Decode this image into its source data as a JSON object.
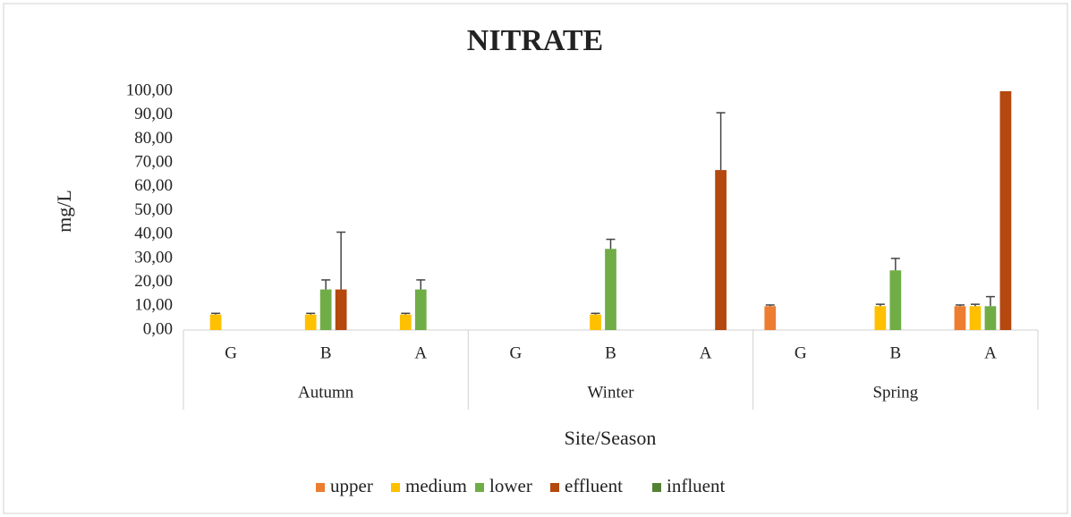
{
  "chart_data": {
    "type": "bar",
    "title": "NITRATE",
    "y_label": "mg/L",
    "x_label": "Site/Season",
    "categories": [
      "G",
      "B",
      "A",
      "G",
      "B",
      "A",
      "G",
      "B",
      "A"
    ],
    "groups": [
      "Autumn",
      "Winter",
      "Spring"
    ],
    "series": [
      {
        "name": "upper",
        "color": "#ed7d31",
        "values": [
          null,
          null,
          null,
          null,
          null,
          null,
          10,
          null,
          10
        ],
        "errors": [
          null,
          null,
          null,
          null,
          null,
          null,
          0.5,
          null,
          0.5
        ]
      },
      {
        "name": "medium",
        "color": "#ffc000",
        "values": [
          6.5,
          6.5,
          6.5,
          null,
          6.5,
          null,
          null,
          10,
          10
        ],
        "errors": [
          0.5,
          0.5,
          0.5,
          null,
          0.5,
          null,
          null,
          0.8,
          0.8
        ]
      },
      {
        "name": "lower",
        "color": "#70ad47",
        "values": [
          null,
          17,
          17,
          null,
          34,
          null,
          null,
          25,
          10
        ],
        "errors": [
          null,
          4,
          4,
          null,
          4,
          null,
          null,
          5,
          4
        ]
      },
      {
        "name": "effluent",
        "color": "#b4480e",
        "values": [
          null,
          17,
          null,
          null,
          null,
          67,
          null,
          null,
          100
        ],
        "errors": [
          null,
          24,
          null,
          null,
          null,
          24,
          null,
          null,
          null
        ]
      },
      {
        "name": "influent",
        "color": "#548235",
        "values": [
          null,
          null,
          null,
          null,
          null,
          null,
          null,
          null,
          null
        ],
        "errors": [
          null,
          null,
          null,
          null,
          null,
          null,
          null,
          null,
          null
        ]
      }
    ],
    "ylim": [
      0,
      100
    ],
    "yticks": [
      {
        "value": 0,
        "label": "0,00"
      },
      {
        "value": 10,
        "label": "10,00"
      },
      {
        "value": 20,
        "label": "20,00"
      },
      {
        "value": 30,
        "label": "30,00"
      },
      {
        "value": 40,
        "label": "40,00"
      },
      {
        "value": 50,
        "label": "50,00"
      },
      {
        "value": 60,
        "label": "60,00"
      },
      {
        "value": 70,
        "label": "70,00"
      },
      {
        "value": 80,
        "label": "80,00"
      },
      {
        "value": 90,
        "label": "90,00"
      },
      {
        "value": 100,
        "label": "100,00"
      }
    ],
    "legend": "bottom"
  }
}
